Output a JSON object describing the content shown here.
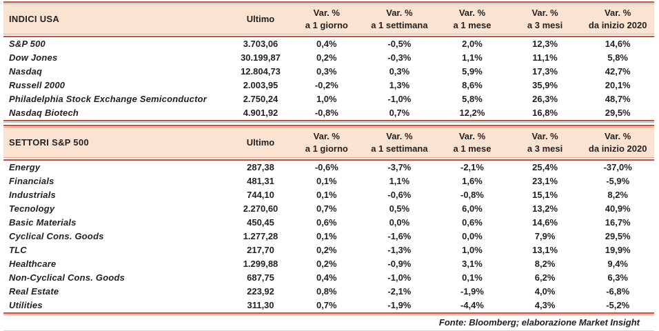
{
  "colors": {
    "accent_dark": "#cd4b38",
    "accent_light": "#e8a292",
    "header_bg": "#fae3d1",
    "text": "#25211f"
  },
  "column_headers": {
    "ultimo": "Ultimo",
    "var_top": "Var. %",
    "var_bottom": [
      "a 1 giorno",
      "a 1 settimana",
      "a 1 mese",
      "a 3 mesi",
      "da inizio 2020"
    ]
  },
  "footer": {
    "source": "Fonte: Bloomberg; elaborazione Market Insight"
  },
  "chart_data": [
    {
      "type": "table",
      "title": "INDICI USA",
      "columns": [
        "Ultimo",
        "Var. % a 1 giorno",
        "Var. % a 1 settimana",
        "Var. % a 1 mese",
        "Var. % a 3 mesi",
        "Var. % da inizio 2020"
      ],
      "rows": [
        [
          "S&P 500",
          "3.703,06",
          "0,4%",
          "-0,5%",
          "2,0%",
          "12,3%",
          "14,6%"
        ],
        [
          "Dow Jones",
          "30.199,87",
          "0,2%",
          "-0,3%",
          "1,1%",
          "11,1%",
          "5,8%"
        ],
        [
          "Nasdaq",
          "12.804,73",
          "0,3%",
          "0,3%",
          "5,9%",
          "17,3%",
          "42,7%"
        ],
        [
          "Russell 2000",
          "2.003,95",
          "-0,2%",
          "1,3%",
          "8,6%",
          "35,9%",
          "20,1%"
        ],
        [
          "Philadelphia Stock Exchange Semiconductor",
          "2.750,24",
          "1,0%",
          "-1,0%",
          "5,8%",
          "26,3%",
          "48,7%"
        ],
        [
          "Nasdaq Biotech",
          "4.901,92",
          "-0,8%",
          "0,7%",
          "12,2%",
          "16,8%",
          "29,5%"
        ]
      ]
    },
    {
      "type": "table",
      "title": "SETTORI S&P 500",
      "columns": [
        "Ultimo",
        "Var. % a 1 giorno",
        "Var. % a 1 settimana",
        "Var. % a 1 mese",
        "Var. % a 3 mesi",
        "Var. % da inizio 2020"
      ],
      "rows": [
        [
          "Energy",
          "287,38",
          "-0,6%",
          "-3,7%",
          "-2,1%",
          "25,4%",
          "-37,0%"
        ],
        [
          "Financials",
          "481,31",
          "0,1%",
          "1,1%",
          "1,6%",
          "23,1%",
          "-5,9%"
        ],
        [
          "Industrials",
          "744,10",
          "0,1%",
          "-0,6%",
          "-0,8%",
          "15,1%",
          "8,2%"
        ],
        [
          "Tecnology",
          "2.270,60",
          "0,7%",
          "0,5%",
          "6,0%",
          "13,2%",
          "40,9%"
        ],
        [
          "Basic Materials",
          "450,45",
          "0,6%",
          "0,0%",
          "0,6%",
          "14,6%",
          "16,7%"
        ],
        [
          "Cyclical Cons. Goods",
          "1.277,28",
          "0,1%",
          "-1,6%",
          "0,0%",
          "7,9%",
          "29,5%"
        ],
        [
          "TLC",
          "217,70",
          "0,2%",
          "-1,3%",
          "1,0%",
          "13,1%",
          "19,9%"
        ],
        [
          "Healthcare",
          "1.299,88",
          "0,2%",
          "-0,9%",
          "3,1%",
          "8,2%",
          "9,4%"
        ],
        [
          "Non-Cyclical Cons. Goods",
          "687,75",
          "0,4%",
          "-1,0%",
          "0,1%",
          "6,2%",
          "6,3%"
        ],
        [
          "Real Estate",
          "223,92",
          "0,8%",
          "-2,1%",
          "-1,9%",
          "4,0%",
          "-6,8%"
        ],
        [
          "Utilities",
          "311,30",
          "0,7%",
          "-1,9%",
          "-4,4%",
          "4,3%",
          "-5,2%"
        ]
      ]
    }
  ]
}
